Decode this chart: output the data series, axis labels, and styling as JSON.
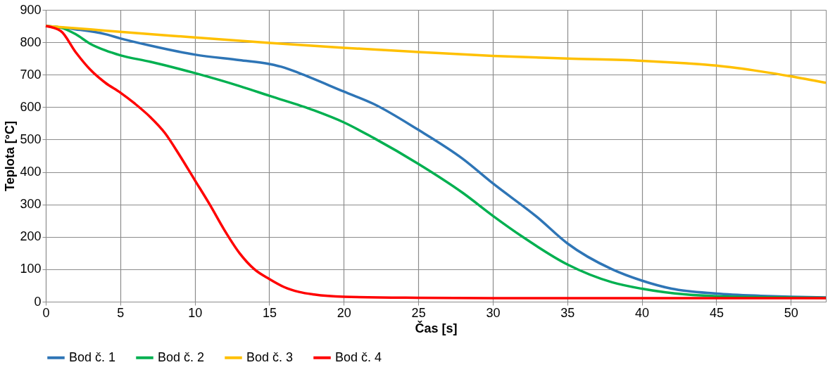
{
  "chart_data": {
    "type": "line",
    "xlabel": "Čas [s]",
    "ylabel": "Teplota [°C]",
    "xlim": [
      0,
      52.35
    ],
    "ylim": [
      0,
      900
    ],
    "xticks": [
      0,
      5,
      10,
      15,
      20,
      25,
      30,
      35,
      40,
      45,
      50
    ],
    "yticks": [
      0,
      100,
      200,
      300,
      400,
      500,
      600,
      700,
      800,
      900
    ],
    "grid": true,
    "legend": "bottom",
    "marker": "none",
    "line_style": "solid",
    "series": [
      {
        "name": "Bod č. 1",
        "color": "#2e75b6",
        "x": [
          0,
          2,
          4,
          5,
          7,
          10,
          13,
          15,
          16,
          17,
          20,
          22,
          25,
          28,
          30,
          33,
          35,
          38,
          40,
          42,
          45,
          48,
          50,
          52.35
        ],
        "values": [
          850,
          840,
          825,
          812,
          790,
          762,
          745,
          733,
          722,
          705,
          648,
          610,
          530,
          440,
          365,
          260,
          180,
          100,
          65,
          40,
          25,
          18,
          15,
          13
        ]
      },
      {
        "name": "Bod č. 2",
        "color": "#00b050",
        "x": [
          0,
          1,
          2,
          3,
          4,
          5,
          7,
          10,
          13,
          15,
          18,
          20,
          22,
          25,
          28,
          30,
          32,
          35,
          38,
          40,
          43,
          45,
          50,
          52.35
        ],
        "values": [
          850,
          845,
          825,
          795,
          775,
          760,
          740,
          705,
          665,
          635,
          590,
          553,
          505,
          425,
          335,
          265,
          200,
          115,
          60,
          40,
          22,
          17,
          13,
          12
        ]
      },
      {
        "name": "Bod č. 3",
        "color": "#ffc000",
        "x": [
          0,
          3,
          5,
          10,
          15,
          20,
          25,
          30,
          35,
          40,
          43,
          45,
          48,
          50,
          52.35
        ],
        "values": [
          850,
          840,
          832,
          815,
          798,
          783,
          770,
          758,
          750,
          743,
          735,
          728,
          710,
          695,
          675
        ]
      },
      {
        "name": "Bod č. 4",
        "color": "#ff0000",
        "x": [
          0,
          1,
          2,
          3,
          4,
          5,
          6,
          7,
          8,
          9,
          10,
          11,
          12,
          13,
          14,
          15,
          16,
          17,
          18,
          20,
          25,
          30,
          52.35
        ],
        "values": [
          850,
          835,
          770,
          715,
          675,
          645,
          610,
          570,
          520,
          450,
          375,
          300,
          220,
          150,
          100,
          70,
          45,
          30,
          22,
          15,
          12,
          11,
          11
        ]
      }
    ]
  }
}
